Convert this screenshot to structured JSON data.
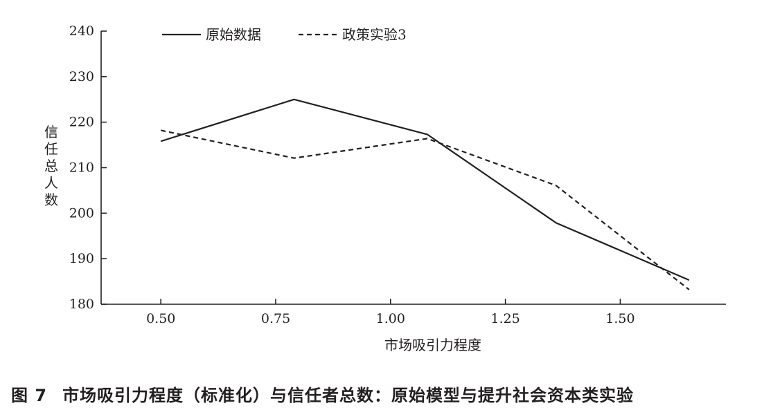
{
  "caption": {
    "figure_number": "图 7",
    "text": "市场吸引力程度（标准化）与信任者总数：原始模型与提升社会资本类实验"
  },
  "chart_data": {
    "type": "line",
    "xlabel": "市场吸引力程度",
    "ylabel": "信任总人数",
    "x_ticks": [
      0.5,
      0.75,
      1.0,
      1.25,
      1.5
    ],
    "x_tick_labels": [
      "0.50",
      "0.75",
      "1.00",
      "1.25",
      "1.50"
    ],
    "y_ticks": [
      180,
      190,
      200,
      210,
      220,
      230,
      240
    ],
    "y_tick_labels": [
      "180",
      "190",
      "200",
      "210",
      "220",
      "230",
      "240"
    ],
    "xlim": [
      0.37,
      1.73
    ],
    "ylim": [
      180,
      240
    ],
    "grid": false,
    "legend_position": "top",
    "series": [
      {
        "name": "原始数据",
        "style": "solid",
        "color": "#231f20",
        "x": [
          0.5,
          0.79,
          1.08,
          1.36,
          1.65
        ],
        "y": [
          215.8,
          225.0,
          217.3,
          197.9,
          185.3
        ]
      },
      {
        "name": "政策实验3",
        "style": "dashed",
        "color": "#231f20",
        "x": [
          0.5,
          0.79,
          1.08,
          1.36,
          1.65
        ],
        "y": [
          218.2,
          212.1,
          216.4,
          206.1,
          183.2
        ]
      }
    ]
  }
}
